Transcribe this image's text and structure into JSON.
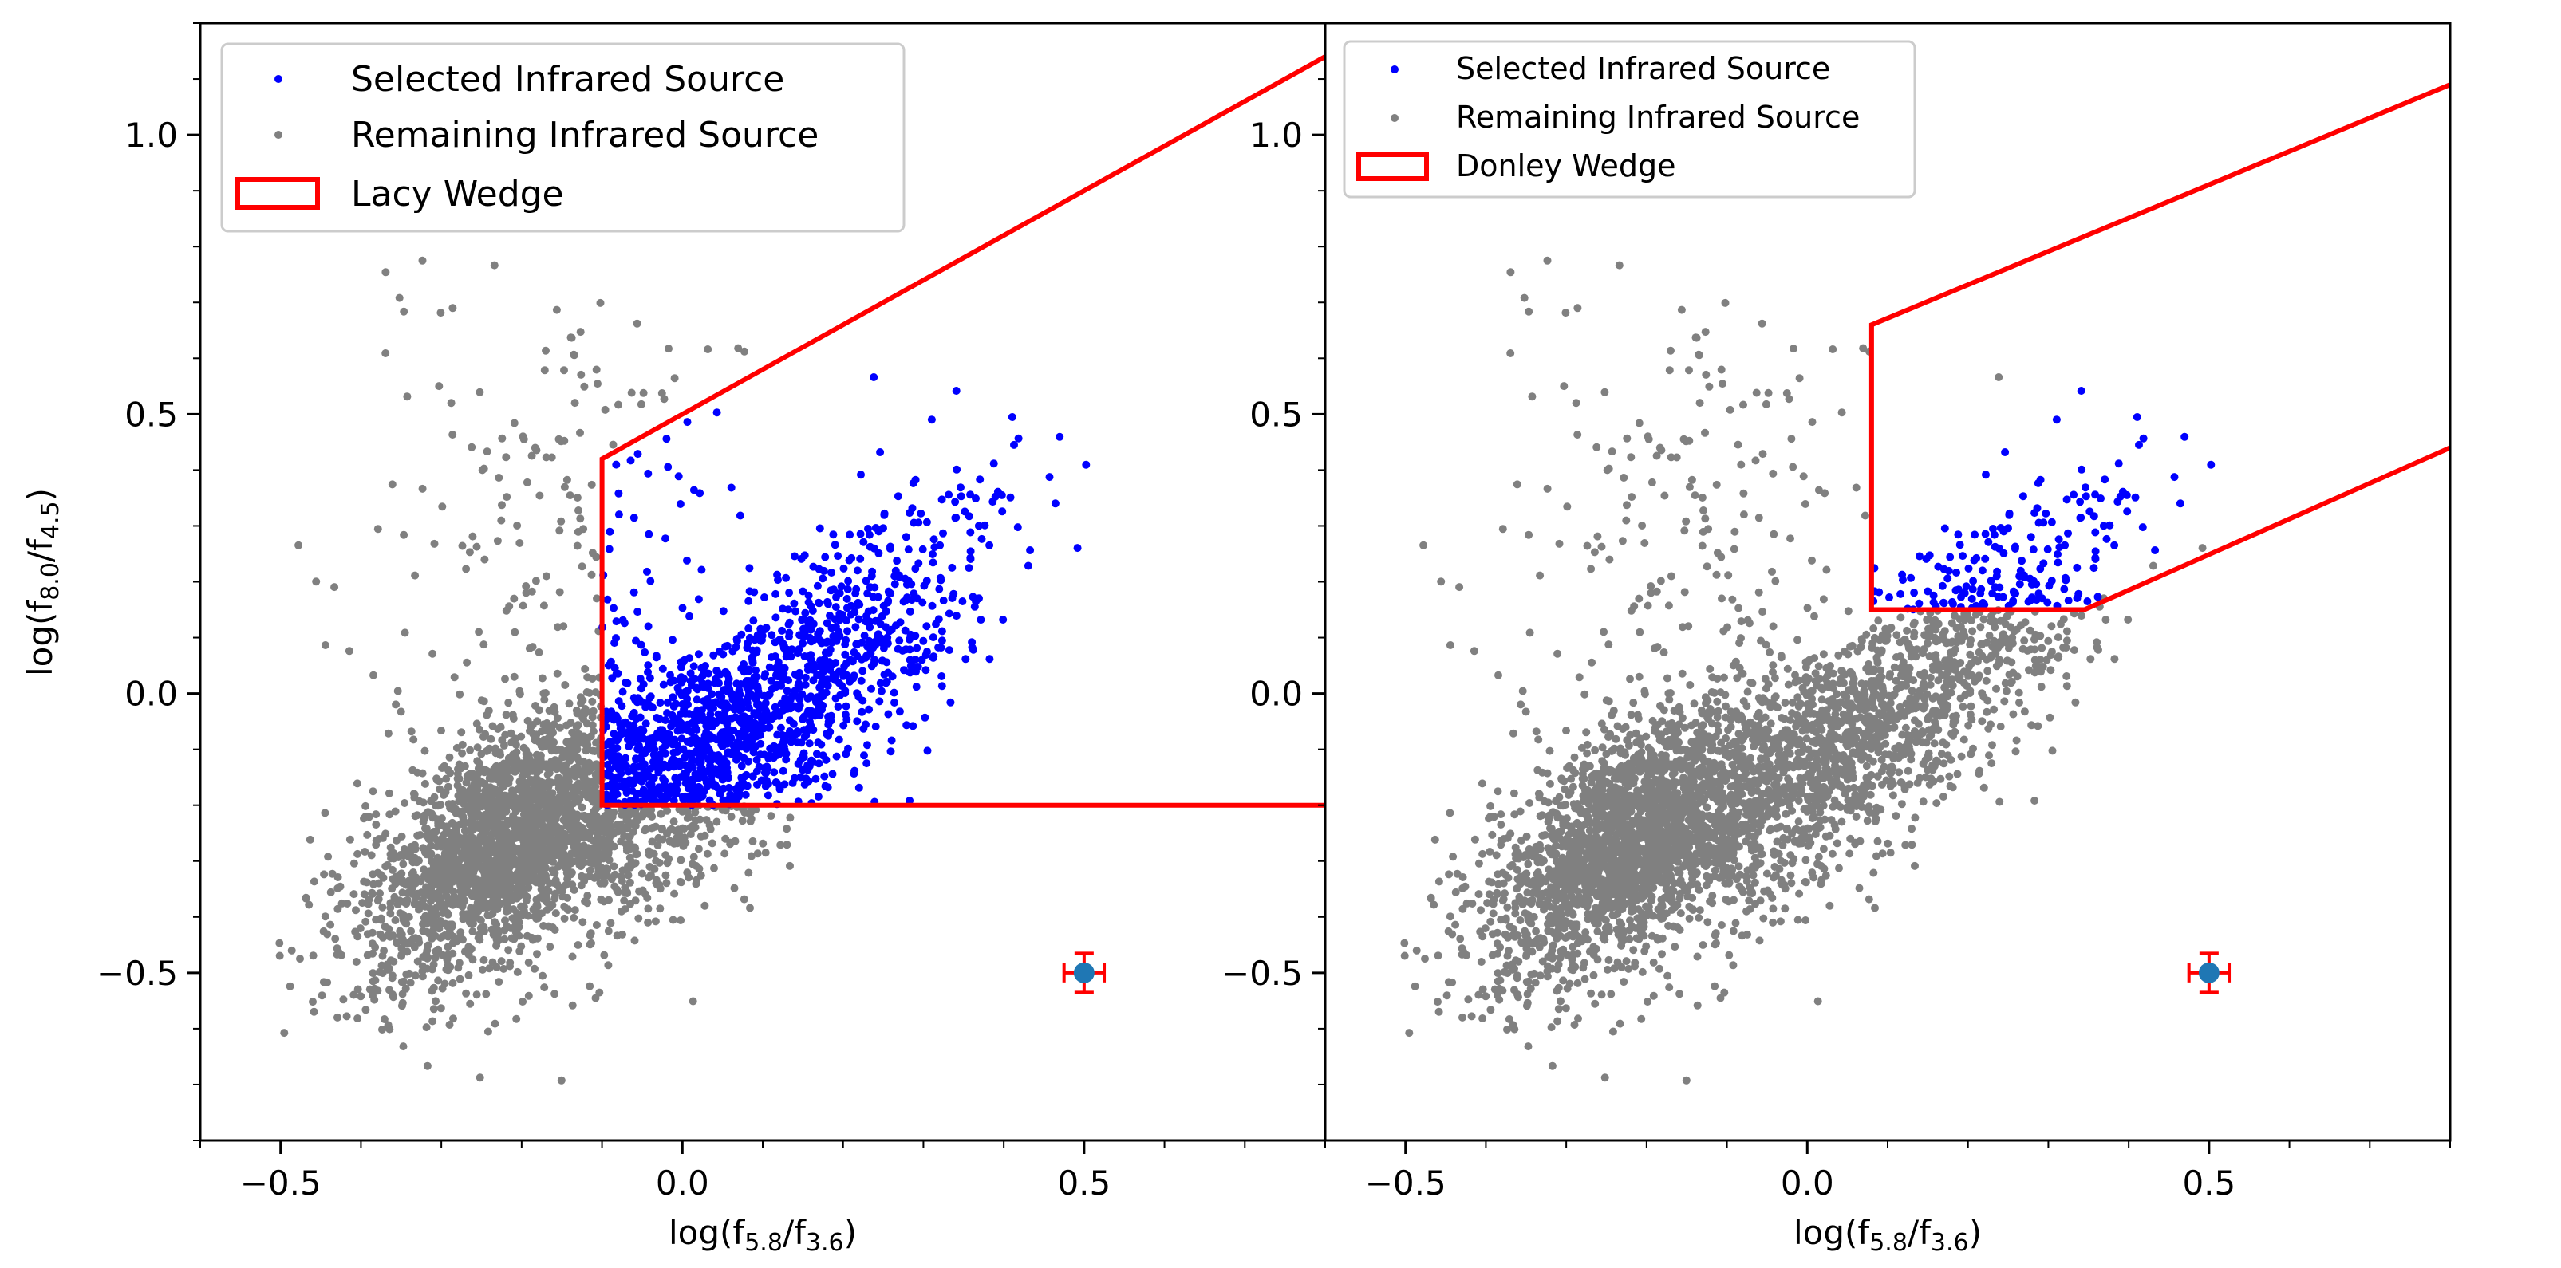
{
  "chart_data": [
    {
      "type": "scatter",
      "panel": "left",
      "xlabel": {
        "base": "log(f",
        "sub1": "5.8",
        "mid": "/f",
        "sub2": "3.6",
        "end": ")"
      },
      "ylabel": {
        "base": "log(f",
        "sub1": "8.0",
        "mid": "/f",
        "sub2": "4.5",
        "end": ")"
      },
      "xlim": [
        -0.6,
        0.8
      ],
      "ylim": [
        -0.8,
        1.2
      ],
      "xticks": [
        -0.5,
        0.0,
        0.5
      ],
      "xtick_labels": [
        "−0.5",
        "0.0",
        "0.5"
      ],
      "yticks": [
        -0.5,
        0.0,
        0.5,
        1.0
      ],
      "ytick_labels": [
        "−0.5",
        "0.0",
        "0.5",
        "1.0"
      ],
      "grid": false,
      "legend_position": "top-left",
      "legend": [
        "Selected Infrared Source",
        "Remaining Infrared Source",
        "Lacy Wedge"
      ],
      "series": [
        {
          "name": "Selected Infrared Source",
          "color": "#0000ff",
          "marker": "dot",
          "points_note": "approx 1100 points"
        },
        {
          "name": "Remaining Infrared Source",
          "color": "#808080",
          "marker": "dot",
          "points_note": "approx 3000 points"
        }
      ],
      "wedge": {
        "name": "Lacy Wedge",
        "color": "#ff0000",
        "vertices": [
          [
            0.8,
            1.14
          ],
          [
            -0.1,
            0.42
          ],
          [
            -0.1,
            -0.2
          ],
          [
            0.8,
            -0.2
          ]
        ]
      },
      "error_bar": {
        "x": 0.5,
        "y": -0.5,
        "xerr": 0.025,
        "yerr": 0.035,
        "marker_color": "#1f77b4",
        "bar_color": "#ff0000"
      }
    },
    {
      "type": "scatter",
      "panel": "right",
      "xlabel": {
        "base": "log(f",
        "sub1": "5.8",
        "mid": "/f",
        "sub2": "3.6",
        "end": ")"
      },
      "xlim": [
        -0.6,
        0.8
      ],
      "ylim": [
        -0.8,
        1.2
      ],
      "xticks": [
        -0.5,
        0.0,
        0.5
      ],
      "xtick_labels": [
        "−0.5",
        "0.0",
        "0.5"
      ],
      "yticks": [
        -0.5,
        0.0,
        0.5,
        1.0
      ],
      "ytick_labels": [
        "−0.5",
        "0.0",
        "0.5",
        "1.0"
      ],
      "grid": false,
      "legend_position": "top-left",
      "legend": [
        "Selected Infrared Source",
        "Remaining Infrared Source",
        "Donley Wedge"
      ],
      "series": [
        {
          "name": "Selected Infrared Source",
          "color": "#0000ff",
          "marker": "dot",
          "points_note": "approx 220 points"
        },
        {
          "name": "Remaining Infrared Source",
          "color": "#808080",
          "marker": "dot",
          "points_note": "approx 3900 points"
        }
      ],
      "wedge": {
        "name": "Donley Wedge",
        "color": "#ff0000",
        "vertices": [
          [
            0.8,
            1.09
          ],
          [
            0.08,
            0.66
          ],
          [
            0.08,
            0.15
          ],
          [
            0.345,
            0.15
          ],
          [
            0.8,
            0.44
          ]
        ]
      },
      "error_bar": {
        "x": 0.5,
        "y": -0.5,
        "xerr": 0.025,
        "yerr": 0.035,
        "marker_color": "#1f77b4",
        "bar_color": "#ff0000"
      }
    }
  ]
}
